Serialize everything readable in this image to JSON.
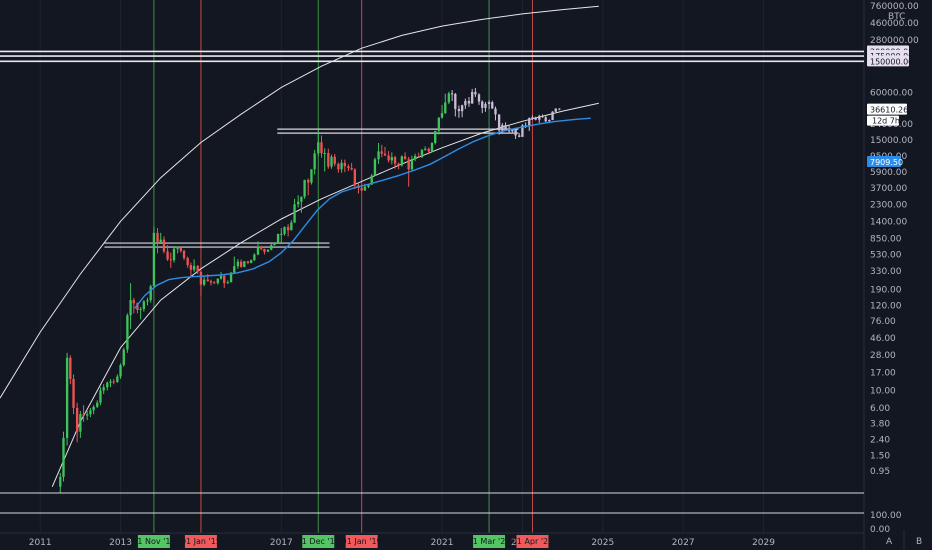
{
  "chart_data": {
    "type": "candlestick",
    "currency_label": "BTC",
    "log_scale": true,
    "ylim": [
      0.5,
      900000
    ],
    "x_range": [
      2010.0,
      2031.5
    ],
    "price_ticks": [
      "760000.00",
      "460000.00",
      "280000.00",
      "60000.00",
      "24000.00",
      "15000.00",
      "9500.00",
      "5900.00",
      "3700.00",
      "2300.00",
      "1400.00",
      "850.00",
      "530.00",
      "330.00",
      "190.00",
      "120.00",
      "76.00",
      "46.00",
      "28.00",
      "17.00",
      "10.00",
      "6.00",
      "3.80",
      "2.40",
      "1.50",
      "0.95"
    ],
    "price_tick_values": [
      760000,
      460000,
      280000,
      60000,
      24000,
      15000,
      9500,
      5900,
      3700,
      2300,
      1400,
      850,
      530,
      330,
      190,
      120,
      76,
      46,
      28,
      17,
      10,
      6,
      3.8,
      2.4,
      1.5,
      0.95
    ],
    "x_ticks": [
      "2011",
      "2013",
      "2015",
      "2017",
      "2019",
      "2021",
      "2023",
      "2025",
      "2027",
      "2029"
    ],
    "x_tick_values": [
      2011,
      2013,
      2015,
      2017,
      2019,
      2021,
      2023,
      2025,
      2027,
      2029
    ],
    "horizontal_levels": [
      {
        "label": "200000.00",
        "value": 200000
      },
      {
        "label": "175000.00",
        "value": 175000
      },
      {
        "label": "150000.00",
        "value": 150000
      }
    ],
    "current_price": {
      "label": "36610.26",
      "value": 36610.26
    },
    "countdown": "12d 7h",
    "ma_price": {
      "label": "7909.50",
      "value": 7909.5
    },
    "cycle_tops": [
      {
        "label": "01 Nov '13",
        "x": 2013.83
      },
      {
        "label": "01 Dec '17",
        "x": 2017.92
      },
      {
        "label": "01 Mar '22",
        "x": 2022.17
      }
    ],
    "cycle_bottoms": [
      {
        "label": "01 Jan '15",
        "x": 2015.0
      },
      {
        "label": "01 Jan '19",
        "x": 2019.0
      },
      {
        "label": "01 Apr '23",
        "x": 2023.25
      }
    ],
    "ath_boxes": [
      {
        "x0": 2012.6,
        "x1": 2018.2,
        "value": 700
      },
      {
        "x0": 2016.9,
        "x1": 2022.9,
        "value": 19500
      }
    ],
    "ohlc": [
      [
        2011.5,
        0.6,
        0.9,
        0.5,
        0.8
      ],
      [
        2011.58,
        0.8,
        3.0,
        0.7,
        2.5
      ],
      [
        2011.67,
        2.5,
        30,
        2.0,
        26
      ],
      [
        2011.75,
        26,
        28,
        12,
        14
      ],
      [
        2011.83,
        14,
        16,
        5,
        6
      ],
      [
        2011.92,
        6,
        7,
        2.2,
        3.0
      ],
      [
        2012.0,
        3.0,
        5.5,
        2.5,
        5.0
      ],
      [
        2012.08,
        5.0,
        6.5,
        4.0,
        4.8
      ],
      [
        2012.17,
        4.8,
        5.5,
        4.2,
        5.0
      ],
      [
        2012.25,
        5.0,
        6.0,
        4.6,
        5.6
      ],
      [
        2012.33,
        5.6,
        6.5,
        5.0,
        6.2
      ],
      [
        2012.42,
        6.2,
        7.5,
        6.0,
        7.0
      ],
      [
        2012.5,
        7.0,
        11,
        6.5,
        10
      ],
      [
        2012.58,
        10,
        12,
        9,
        11
      ],
      [
        2012.67,
        11,
        13,
        10,
        12.5
      ],
      [
        2012.75,
        12.5,
        14,
        11,
        13
      ],
      [
        2012.83,
        13,
        14,
        12,
        12.8
      ],
      [
        2012.92,
        12.8,
        16,
        12.5,
        15
      ],
      [
        2013.0,
        15,
        22,
        14,
        21
      ],
      [
        2013.08,
        21,
        35,
        20,
        33
      ],
      [
        2013.17,
        33,
        95,
        30,
        90
      ],
      [
        2013.25,
        90,
        230,
        60,
        140
      ],
      [
        2013.33,
        140,
        150,
        95,
        128
      ],
      [
        2013.42,
        128,
        130,
        95,
        105
      ],
      [
        2013.5,
        105,
        115,
        80,
        108
      ],
      [
        2013.58,
        108,
        140,
        100,
        135
      ],
      [
        2013.67,
        135,
        150,
        120,
        140
      ],
      [
        2013.75,
        140,
        220,
        130,
        210
      ],
      [
        2013.83,
        210,
        1200,
        200,
        1000
      ],
      [
        2013.92,
        1000,
        1150,
        550,
        760
      ],
      [
        2014.0,
        760,
        1000,
        720,
        820
      ],
      [
        2014.08,
        820,
        900,
        550,
        580
      ],
      [
        2014.17,
        580,
        700,
        440,
        460
      ],
      [
        2014.25,
        460,
        560,
        360,
        450
      ],
      [
        2014.33,
        450,
        680,
        420,
        630
      ],
      [
        2014.42,
        630,
        670,
        550,
        640
      ],
      [
        2014.5,
        640,
        660,
        560,
        590
      ],
      [
        2014.58,
        590,
        610,
        450,
        480
      ],
      [
        2014.67,
        480,
        500,
        360,
        390
      ],
      [
        2014.75,
        390,
        420,
        280,
        340
      ],
      [
        2014.83,
        340,
        460,
        320,
        380
      ],
      [
        2014.92,
        380,
        390,
        300,
        320
      ],
      [
        2015.0,
        320,
        330,
        160,
        220
      ],
      [
        2015.08,
        220,
        280,
        210,
        255
      ],
      [
        2015.17,
        255,
        300,
        240,
        245
      ],
      [
        2015.25,
        245,
        255,
        215,
        235
      ],
      [
        2015.33,
        235,
        245,
        225,
        230
      ],
      [
        2015.42,
        230,
        265,
        220,
        262
      ],
      [
        2015.5,
        262,
        320,
        255,
        285
      ],
      [
        2015.58,
        285,
        290,
        200,
        230
      ],
      [
        2015.67,
        230,
        250,
        225,
        236
      ],
      [
        2015.75,
        236,
        320,
        235,
        312
      ],
      [
        2015.83,
        312,
        500,
        300,
        378
      ],
      [
        2015.92,
        378,
        465,
        350,
        430
      ],
      [
        2016.0,
        430,
        460,
        360,
        370
      ],
      [
        2016.08,
        370,
        440,
        365,
        435
      ],
      [
        2016.17,
        435,
        440,
        400,
        415
      ],
      [
        2016.25,
        415,
        460,
        410,
        450
      ],
      [
        2016.33,
        450,
        550,
        440,
        530
      ],
      [
        2016.42,
        530,
        780,
        520,
        670
      ],
      [
        2016.5,
        670,
        690,
        600,
        625
      ],
      [
        2016.58,
        625,
        630,
        530,
        575
      ],
      [
        2016.67,
        575,
        620,
        570,
        610
      ],
      [
        2016.75,
        610,
        740,
        600,
        700
      ],
      [
        2016.83,
        700,
        760,
        690,
        745
      ],
      [
        2016.92,
        745,
        980,
        740,
        965
      ],
      [
        2017.0,
        965,
        1150,
        750,
        970
      ],
      [
        2017.08,
        970,
        1200,
        920,
        1190
      ],
      [
        2017.17,
        1190,
        1290,
        900,
        1080
      ],
      [
        2017.25,
        1080,
        1450,
        1070,
        1350
      ],
      [
        2017.33,
        1350,
        2700,
        1340,
        2300
      ],
      [
        2017.42,
        2300,
        3000,
        2100,
        2480
      ],
      [
        2017.5,
        2480,
        2900,
        1800,
        2870
      ],
      [
        2017.58,
        2870,
        4700,
        2700,
        4700
      ],
      [
        2017.67,
        4700,
        4900,
        3000,
        4340
      ],
      [
        2017.75,
        4340,
        6400,
        4100,
        6400
      ],
      [
        2017.83,
        6400,
        11300,
        5500,
        10200
      ],
      [
        2017.92,
        10200,
        19800,
        9400,
        14100
      ],
      [
        2018.0,
        14100,
        17200,
        9000,
        10200
      ],
      [
        2018.08,
        10200,
        11800,
        6000,
        10300
      ],
      [
        2018.17,
        10300,
        11700,
        6500,
        6930
      ],
      [
        2018.25,
        6930,
        9800,
        6500,
        9250
      ],
      [
        2018.33,
        9250,
        10000,
        7000,
        7500
      ],
      [
        2018.42,
        7500,
        7800,
        5800,
        6400
      ],
      [
        2018.5,
        6400,
        8500,
        5800,
        7730
      ],
      [
        2018.58,
        7730,
        8500,
        5900,
        7000
      ],
      [
        2018.67,
        7000,
        7400,
        6100,
        6620
      ],
      [
        2018.75,
        6620,
        7700,
        6200,
        6370
      ],
      [
        2018.83,
        6370,
        6600,
        3600,
        4000
      ],
      [
        2018.92,
        4000,
        4300,
        3150,
        3700
      ],
      [
        2019.0,
        3700,
        4100,
        3400,
        3450
      ],
      [
        2019.08,
        3450,
        4200,
        3400,
        3850
      ],
      [
        2019.17,
        3850,
        4100,
        3700,
        4100
      ],
      [
        2019.25,
        4100,
        5600,
        4050,
        5330
      ],
      [
        2019.33,
        5330,
        9000,
        5300,
        8570
      ],
      [
        2019.42,
        8570,
        13800,
        7500,
        10800
      ],
      [
        2019.5,
        10800,
        13100,
        9100,
        10100
      ],
      [
        2019.58,
        10100,
        12300,
        9400,
        9600
      ],
      [
        2019.67,
        9600,
        10900,
        7800,
        8300
      ],
      [
        2019.75,
        8300,
        10500,
        7400,
        9150
      ],
      [
        2019.83,
        9150,
        9500,
        6500,
        7550
      ],
      [
        2019.92,
        7550,
        7800,
        6400,
        7200
      ],
      [
        2020.0,
        7200,
        9600,
        6900,
        9350
      ],
      [
        2020.08,
        9350,
        10500,
        8500,
        8600
      ],
      [
        2020.17,
        8600,
        9200,
        3850,
        6400
      ],
      [
        2020.25,
        6400,
        9500,
        6200,
        8650
      ],
      [
        2020.33,
        8650,
        10100,
        8100,
        9450
      ],
      [
        2020.42,
        9450,
        10400,
        8900,
        9140
      ],
      [
        2020.5,
        9140,
        11500,
        8900,
        11350
      ],
      [
        2020.58,
        11350,
        12500,
        11000,
        11650
      ],
      [
        2020.67,
        11650,
        12100,
        9900,
        10780
      ],
      [
        2020.75,
        10780,
        14100,
        10500,
        13800
      ],
      [
        2020.83,
        13800,
        19500,
        13200,
        19700
      ],
      [
        2020.92,
        19700,
        29300,
        17600,
        29000
      ],
      [
        2021.0,
        29000,
        42000,
        28000,
        33100
      ],
      [
        2021.08,
        33100,
        58300,
        32300,
        45200
      ],
      [
        2021.17,
        45200,
        61800,
        43000,
        58800
      ]
    ],
    "ohlc_faded": [
      [
        2021.25,
        58800,
        64900,
        47000,
        57700
      ],
      [
        2021.33,
        57700,
        59500,
        30000,
        37300
      ],
      [
        2021.42,
        37300,
        41300,
        28800,
        35000
      ],
      [
        2021.5,
        35000,
        42300,
        29300,
        41500
      ],
      [
        2021.58,
        41500,
        50500,
        37300,
        47100
      ],
      [
        2021.67,
        47100,
        52900,
        39600,
        43800
      ],
      [
        2021.75,
        43800,
        66900,
        43300,
        61300
      ],
      [
        2021.83,
        61300,
        69000,
        53000,
        57000
      ],
      [
        2021.92,
        57000,
        59100,
        42000,
        46300
      ],
      [
        2022.0,
        46300,
        48000,
        33000,
        38500
      ],
      [
        2022.08,
        38500,
        45800,
        34300,
        43200
      ],
      [
        2022.17,
        43200,
        48200,
        37200,
        45500
      ],
      [
        2022.25,
        45500,
        47400,
        37600,
        37700
      ],
      [
        2022.33,
        37700,
        40000,
        26700,
        31800
      ],
      [
        2022.42,
        31800,
        31900,
        17600,
        19900
      ],
      [
        2022.5,
        19900,
        24700,
        18800,
        23300
      ],
      [
        2022.58,
        23300,
        25200,
        19600,
        20000
      ],
      [
        2022.67,
        20000,
        22700,
        18200,
        19400
      ],
      [
        2022.75,
        19400,
        20900,
        18200,
        20500
      ],
      [
        2022.83,
        20500,
        21500,
        15500,
        17200
      ],
      [
        2022.92,
        17200,
        18400,
        16300,
        16500
      ],
      [
        2023.0,
        16500,
        23900,
        16500,
        23100
      ],
      [
        2023.08,
        23100,
        25200,
        21400,
        23100
      ],
      [
        2023.17,
        23100,
        29200,
        19600,
        28500
      ],
      [
        2023.25,
        28500,
        31000,
        27000,
        29200
      ],
      [
        2023.33,
        29200,
        29800,
        26700,
        27200
      ],
      [
        2023.42,
        27200,
        31400,
        24800,
        30500
      ],
      [
        2023.5,
        30500,
        31800,
        28900,
        29200
      ],
      [
        2023.58,
        29200,
        30200,
        25400,
        26000
      ],
      [
        2023.67,
        26000,
        27500,
        24900,
        27000
      ],
      [
        2023.75,
        27000,
        35000,
        26900,
        34500
      ],
      [
        2023.83,
        34500,
        38000,
        34100,
        37700
      ],
      [
        2023.92,
        37700,
        38100,
        36000,
        36610
      ]
    ],
    "ma_points": [
      [
        2013.35,
        110
      ],
      [
        2013.6,
        160
      ],
      [
        2013.9,
        215
      ],
      [
        2014.2,
        255
      ],
      [
        2014.5,
        270
      ],
      [
        2014.8,
        278
      ],
      [
        2015.1,
        283
      ],
      [
        2015.5,
        292
      ],
      [
        2015.9,
        310
      ],
      [
        2016.3,
        350
      ],
      [
        2016.7,
        430
      ],
      [
        2017.0,
        560
      ],
      [
        2017.3,
        800
      ],
      [
        2017.6,
        1250
      ],
      [
        2017.9,
        1950
      ],
      [
        2018.2,
        2700
      ],
      [
        2018.5,
        3300
      ],
      [
        2018.8,
        3700
      ],
      [
        2019.1,
        4050
      ],
      [
        2019.5,
        4600
      ],
      [
        2019.9,
        5300
      ],
      [
        2020.3,
        6200
      ],
      [
        2020.7,
        7400
      ],
      [
        2021.0,
        8900
      ],
      [
        2021.4,
        11500
      ],
      [
        2021.8,
        14500
      ],
      [
        2022.2,
        17500
      ],
      [
        2022.6,
        20000
      ],
      [
        2023.0,
        22000
      ],
      [
        2023.4,
        24000
      ],
      [
        2023.8,
        25800
      ],
      [
        2024.3,
        27500
      ],
      [
        2024.7,
        28500
      ]
    ],
    "upper_curve": [
      [
        2010.0,
        8
      ],
      [
        2011.0,
        55
      ],
      [
        2012.0,
        300
      ],
      [
        2013.0,
        1400
      ],
      [
        2014.0,
        5000
      ],
      [
        2015.0,
        14000
      ],
      [
        2016.0,
        32000
      ],
      [
        2017.0,
        70000
      ],
      [
        2018.0,
        130000
      ],
      [
        2019.0,
        220000
      ],
      [
        2020.0,
        320000
      ],
      [
        2021.0,
        420000
      ],
      [
        2022.0,
        510000
      ],
      [
        2023.0,
        600000
      ],
      [
        2024.0,
        680000
      ],
      [
        2024.9,
        750000
      ]
    ],
    "lower_curve": [
      [
        2011.3,
        0.6
      ],
      [
        2012.0,
        4
      ],
      [
        2013.0,
        35
      ],
      [
        2014.0,
        140
      ],
      [
        2015.0,
        350
      ],
      [
        2016.0,
        750
      ],
      [
        2017.0,
        1500
      ],
      [
        2018.0,
        2700
      ],
      [
        2019.0,
        4500
      ],
      [
        2020.0,
        7500
      ],
      [
        2021.0,
        12000
      ],
      [
        2022.0,
        18500
      ],
      [
        2023.0,
        26000
      ],
      [
        2024.0,
        35000
      ],
      [
        2024.9,
        44000
      ]
    ]
  },
  "lower_pane": {
    "ticks": [
      "100.00",
      "0.00"
    ],
    "tick_values": [
      100,
      0
    ]
  },
  "footer": {
    "auto_label": "A",
    "scale_label": "B"
  },
  "colors": {
    "background": "#131722",
    "grid": "#1f2330",
    "up": "#26a69a",
    "down": "#ef5350",
    "up_bright": "#3fc35b",
    "faded": "#c9bdd6",
    "ma": "#2b8de8",
    "top_line": "#4caf50",
    "bottom_line": "#ef5350",
    "curve": "#e6e6e6",
    "top_tag": "#55c462",
    "bottom_tag": "#f05a5a"
  }
}
